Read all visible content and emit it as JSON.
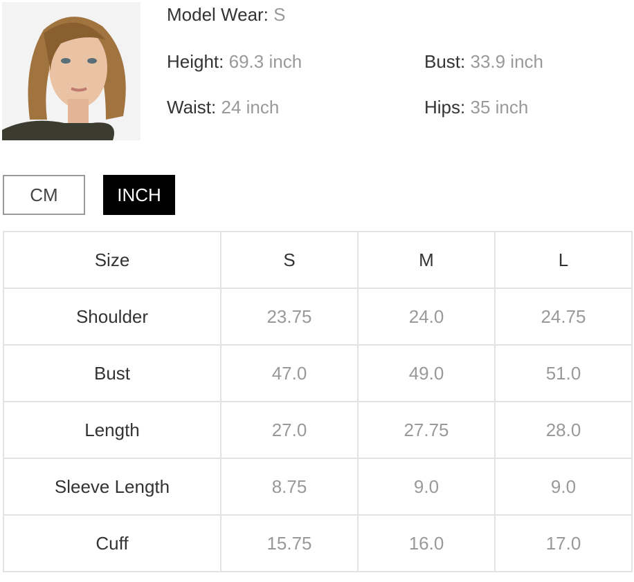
{
  "model": {
    "wear_label": "Model Wear:",
    "wear_value": "S",
    "height_label": "Height:",
    "height_value": "69.3 inch",
    "bust_label": "Bust:",
    "bust_value": "33.9 inch",
    "waist_label": "Waist:",
    "waist_value": "24 inch",
    "hips_label": "Hips:",
    "hips_value": "35 inch"
  },
  "units": {
    "cm": "CM",
    "inch": "INCH",
    "active": "INCH"
  },
  "table": {
    "header": [
      "Size",
      "S",
      "M",
      "L"
    ],
    "rows": [
      [
        "Shoulder",
        "23.75",
        "24.0",
        "24.75"
      ],
      [
        "Bust",
        "47.0",
        "49.0",
        "51.0"
      ],
      [
        "Length",
        "27.0",
        "27.75",
        "28.0"
      ],
      [
        "Sleeve Length",
        "8.75",
        "9.0",
        "9.0"
      ],
      [
        "Cuff",
        "15.75",
        "16.0",
        "17.0"
      ]
    ]
  }
}
